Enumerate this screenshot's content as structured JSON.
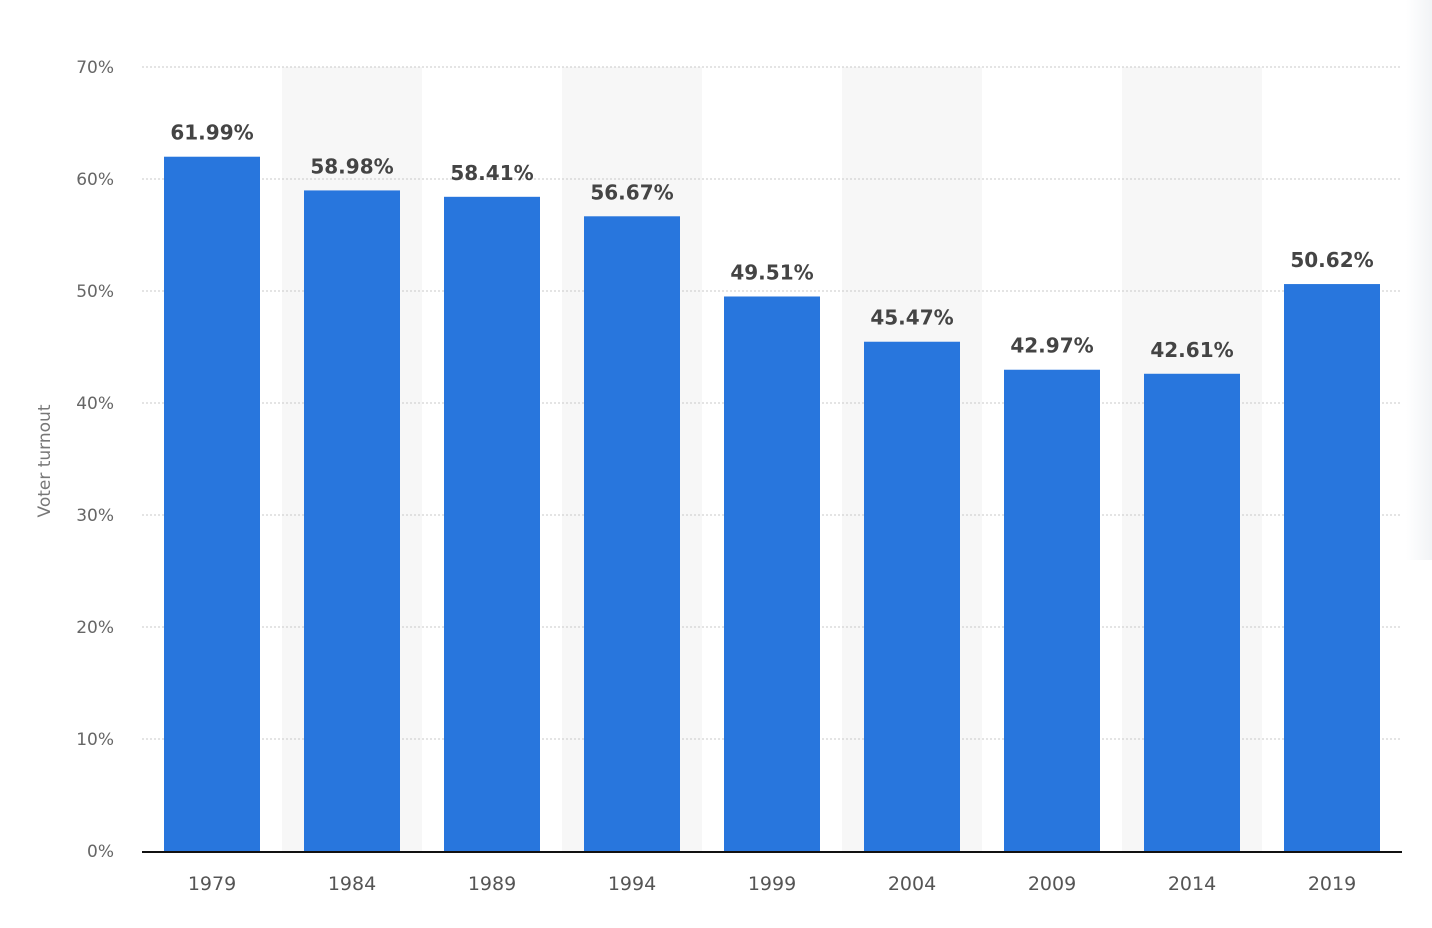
{
  "chart_data": {
    "type": "bar",
    "ylabel": "Voter turnout",
    "xlabel": "",
    "ylim": [
      0,
      70
    ],
    "yticks": [
      0,
      10,
      20,
      30,
      40,
      50,
      60,
      70
    ],
    "ytick_labels": [
      "0%",
      "10%",
      "20%",
      "30%",
      "40%",
      "50%",
      "60%",
      "70%"
    ],
    "grid": true,
    "categories": [
      "1979",
      "1984",
      "1989",
      "1994",
      "1999",
      "2004",
      "2009",
      "2014",
      "2019"
    ],
    "values": [
      61.99,
      58.98,
      58.41,
      56.67,
      49.51,
      45.47,
      42.97,
      42.61,
      50.62
    ],
    "value_labels": [
      "61.99%",
      "58.98%",
      "58.41%",
      "56.67%",
      "49.51%",
      "45.47%",
      "42.97%",
      "42.61%",
      "50.62%"
    ],
    "colors": {
      "bar": "#2876dd",
      "band": "#f7f7f7",
      "grid": "#c9c9c9",
      "baseline": "#111111"
    }
  }
}
